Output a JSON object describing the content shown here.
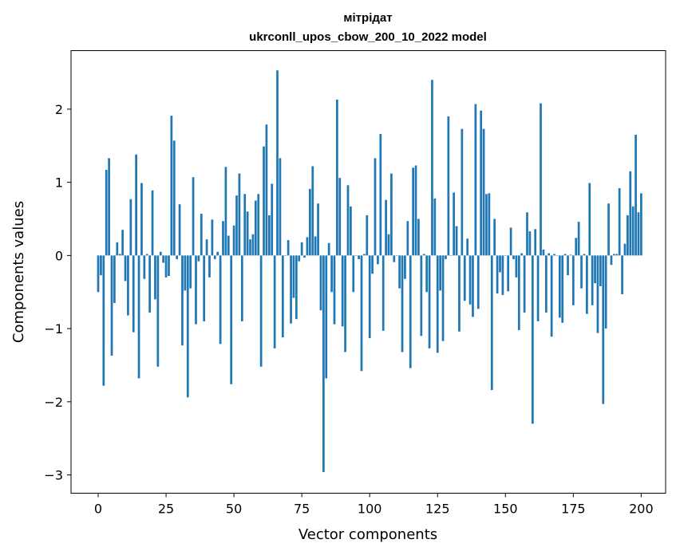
{
  "chart_data": {
    "type": "bar",
    "title": "мітрідат",
    "subtitle": "ukrconll_upos_cbow_200_10_2022 model",
    "xlabel": "Vector components",
    "ylabel": "Components values",
    "xlim": [
      -10,
      209
    ],
    "ylim": [
      -3.25,
      2.8
    ],
    "x_ticks": [
      0,
      25,
      50,
      75,
      100,
      125,
      150,
      175,
      200
    ],
    "y_ticks": [
      -3,
      -2,
      -1,
      0,
      1,
      2
    ],
    "y_tick_labels": [
      "−3",
      "−2",
      "−1",
      "0",
      "1",
      "2"
    ],
    "bar_color": "#1f77b4",
    "grid": false,
    "values": [
      -0.5,
      -0.27,
      -1.78,
      1.17,
      1.33,
      -1.37,
      -0.65,
      0.18,
      0.02,
      0.35,
      -0.35,
      -0.82,
      0.77,
      -1.05,
      1.38,
      -1.68,
      0.99,
      -0.32,
      0.02,
      -0.78,
      0.89,
      -0.6,
      -1.52,
      0.05,
      -0.1,
      -0.3,
      -0.28,
      1.91,
      1.57,
      -0.05,
      0.7,
      -1.23,
      -0.48,
      -1.94,
      -0.45,
      1.07,
      -0.94,
      -0.08,
      0.57,
      -0.9,
      0.22,
      -0.3,
      0.49,
      -0.05,
      0.05,
      -1.21,
      0.47,
      1.21,
      0.27,
      -1.76,
      0.41,
      0.82,
      1.12,
      -0.9,
      0.84,
      0.6,
      0.22,
      0.29,
      0.75,
      0.84,
      -1.52,
      1.49,
      1.79,
      0.55,
      0.98,
      -1.27,
      2.53,
      1.33,
      -1.12,
      0.0,
      0.21,
      -0.93,
      -0.58,
      -0.87,
      -0.08,
      0.18,
      -0.03,
      0.25,
      0.91,
      1.22,
      0.26,
      0.71,
      -0.75,
      -2.96,
      -1.68,
      0.17,
      -0.5,
      -0.94,
      2.13,
      1.06,
      -0.97,
      -1.32,
      0.96,
      0.67,
      -0.5,
      0.0,
      -0.05,
      -1.58,
      0.02,
      0.55,
      -1.13,
      -0.25,
      1.33,
      -0.12,
      1.66,
      -1.03,
      0.76,
      0.29,
      1.12,
      -0.09,
      0.0,
      -0.45,
      -1.32,
      -0.32,
      0.47,
      -1.54,
      1.2,
      1.23,
      0.5,
      -1.1,
      0.02,
      -0.5,
      -1.27,
      2.4,
      0.78,
      -1.33,
      -0.48,
      -1.17,
      -0.05,
      1.9,
      0.0,
      0.86,
      0.4,
      -1.04,
      1.73,
      -0.62,
      0.23,
      -0.67,
      -0.84,
      2.07,
      -0.73,
      1.98,
      1.73,
      0.84,
      0.85,
      -1.84,
      0.5,
      -0.52,
      -0.23,
      -0.54,
      0.0,
      -0.49,
      0.38,
      -0.05,
      -0.3,
      -1.02,
      0.03,
      -0.78,
      0.59,
      0.33,
      -2.3,
      0.36,
      -0.9,
      2.08,
      0.08,
      -0.78,
      0.03,
      -1.11,
      0.02,
      0.0,
      -0.85,
      -0.92,
      0.02,
      -0.27,
      0.01,
      -0.68,
      0.24,
      0.46,
      -0.45,
      0.02,
      -0.8,
      0.99,
      -0.68,
      -0.38,
      -1.06,
      -0.42,
      -2.03,
      -1.0,
      0.71,
      -0.13,
      0.02,
      0.02,
      0.92,
      -0.53,
      0.16,
      0.55,
      1.15,
      0.67,
      1.65,
      0.59,
      0.85
    ]
  }
}
